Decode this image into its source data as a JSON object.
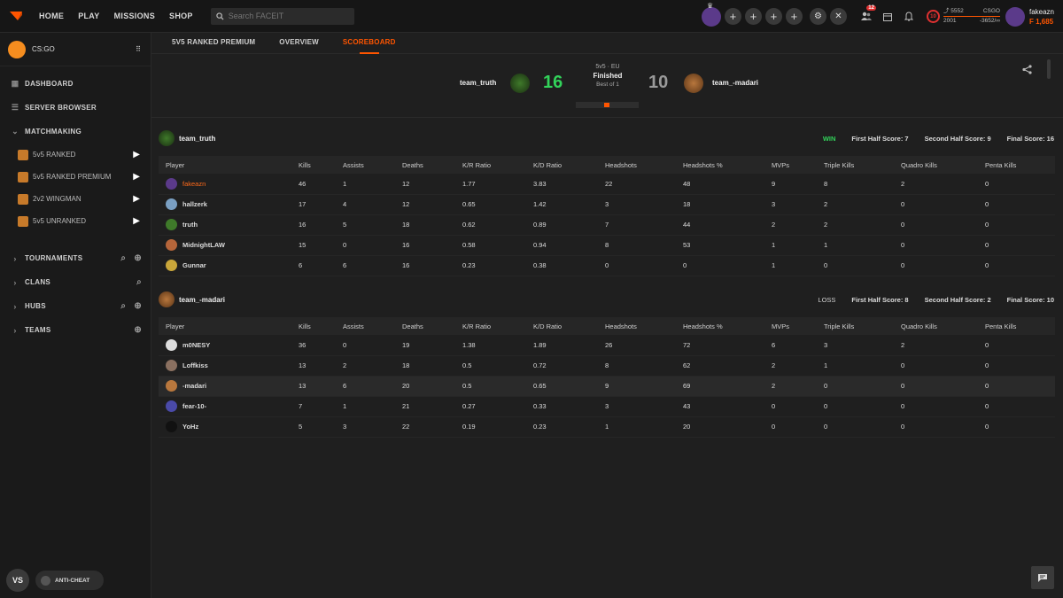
{
  "topnav": {
    "items": [
      "HOME",
      "PLAY",
      "MISSIONS",
      "SHOP"
    ],
    "search_placeholder": "Search FACEIT"
  },
  "topbar": {
    "notif_count": "12",
    "level": "10",
    "elo_current": "5552",
    "elo_game": "CSGO",
    "elo_low": "2001",
    "elo_range": "-3652/∞",
    "username": "fakeazn",
    "points": "1,685",
    "points_prefix": "F"
  },
  "sidebar": {
    "game": "CS:GO",
    "dashboard": "DASHBOARD",
    "server_browser": "SERVER BROWSER",
    "matchmaking": "MATCHMAKING",
    "queues": [
      "5v5 RANKED",
      "5v5 RANKED PREMIUM",
      "2v2 WINGMAN",
      "5v5 UNRANKED"
    ],
    "tournaments": "TOURNAMENTS",
    "clans": "CLANS",
    "hubs": "HUBS",
    "teams": "TEAMS",
    "vs": "VS",
    "anticheat": "ANTI-CHEAT"
  },
  "tabs": [
    "5V5 RANKED PREMIUM",
    "OVERVIEW",
    "SCOREBOARD"
  ],
  "match": {
    "team1": "team_truth",
    "team2": "team_-madari",
    "score1": "16",
    "score2": "10",
    "region": "5v5 · EU",
    "status": "Finished",
    "best_of": "Best of 1"
  },
  "columns": [
    "Player",
    "Kills",
    "Assists",
    "Deaths",
    "K/R Ratio",
    "K/D Ratio",
    "Headshots",
    "Headshots %",
    "MVPs",
    "Triple Kills",
    "Quadro Kills",
    "Penta Kills"
  ],
  "teams": [
    {
      "name": "team_truth",
      "result": "WIN",
      "first_half": "First Half Score: 7",
      "second_half": "Second Half Score: 9",
      "final": "Final Score: 16",
      "players": [
        [
          "fakeazn",
          "46",
          "1",
          "12",
          "1.77",
          "3.83",
          "22",
          "48",
          "9",
          "8",
          "2",
          "0"
        ],
        [
          "hallzerk",
          "17",
          "4",
          "12",
          "0.65",
          "1.42",
          "3",
          "18",
          "3",
          "2",
          "0",
          "0"
        ],
        [
          "truth",
          "16",
          "5",
          "18",
          "0.62",
          "0.89",
          "7",
          "44",
          "2",
          "2",
          "0",
          "0"
        ],
        [
          "MidnightLAW",
          "15",
          "0",
          "16",
          "0.58",
          "0.94",
          "8",
          "53",
          "1",
          "1",
          "0",
          "0"
        ],
        [
          "Gunnar",
          "6",
          "6",
          "16",
          "0.23",
          "0.38",
          "0",
          "0",
          "1",
          "0",
          "0",
          "0"
        ]
      ]
    },
    {
      "name": "team_-madari",
      "result": "LOSS",
      "first_half": "First Half Score: 8",
      "second_half": "Second Half Score: 2",
      "final": "Final Score: 10",
      "players": [
        [
          "m0NESY",
          "36",
          "0",
          "19",
          "1.38",
          "1.89",
          "26",
          "72",
          "6",
          "3",
          "2",
          "0"
        ],
        [
          "Loffkiss",
          "13",
          "2",
          "18",
          "0.5",
          "0.72",
          "8",
          "62",
          "2",
          "1",
          "0",
          "0"
        ],
        [
          "-madari",
          "13",
          "6",
          "20",
          "0.5",
          "0.65",
          "9",
          "69",
          "2",
          "0",
          "0",
          "0"
        ],
        [
          "fear-10-",
          "7",
          "1",
          "21",
          "0.27",
          "0.33",
          "3",
          "43",
          "0",
          "0",
          "0",
          "0"
        ],
        [
          "YoHz",
          "5",
          "3",
          "22",
          "0.19",
          "0.23",
          "1",
          "20",
          "0",
          "0",
          "0",
          "0"
        ]
      ]
    }
  ],
  "colors": {
    "accent": "#ff5500",
    "win": "#32d35a",
    "score_win": "#32d35a",
    "score_loss": "#9a9a9a"
  }
}
